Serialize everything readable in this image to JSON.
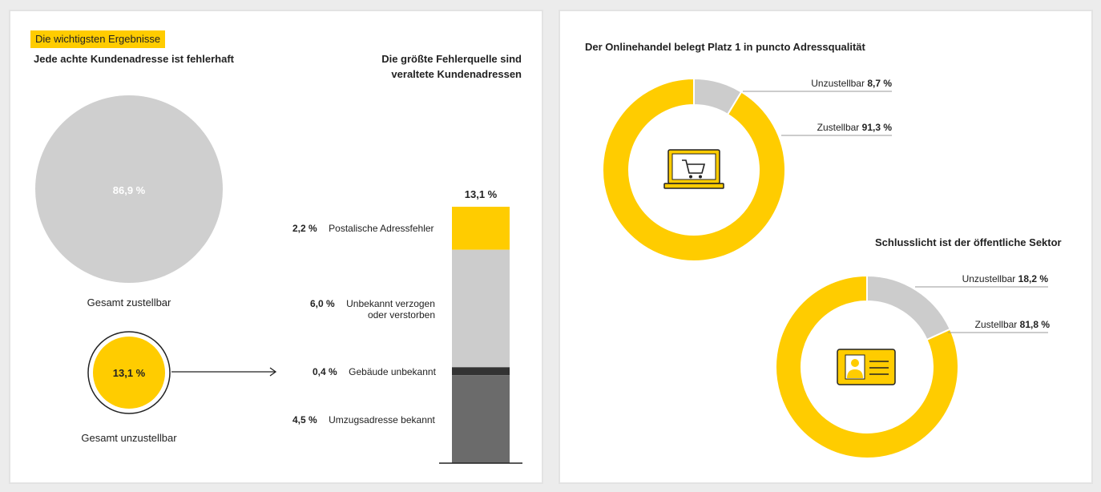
{
  "colors": {
    "yellow": "#ffcc00",
    "light_gray": "#cccccc",
    "dark_gray": "#6b6b6b",
    "darker_gray": "#333333",
    "pie_gray": "#cfcfcf"
  },
  "left": {
    "tag": "Die wichtigsten Ergebnisse",
    "heading": "Jede achte Kundenadresse ist fehlerhaft",
    "big_circle_pct": "86,9 %",
    "big_circle_label": "Gesamt zustellbar",
    "small_circle_pct": "13,1 %",
    "small_circle_label": "Gesamt unzustellbar",
    "stack_heading_1": "Die größte Fehlerquelle sind",
    "stack_heading_2": "veraltete Kundenadressen",
    "stack_total": "13,1 %"
  },
  "right": {
    "heading_top": "Der Onlinehandel belegt Platz 1 in puncto Adressqualität",
    "heading_bottom": "Schlusslicht ist der öffentliche Sektor",
    "icon_top": "shopping-cart-laptop-icon",
    "icon_bottom": "id-card-icon"
  },
  "chart_data": [
    {
      "type": "pie",
      "title": "Jede achte Kundenadresse ist fehlerhaft",
      "slices": [
        {
          "label": "Gesamt zustellbar",
          "value": 86.9,
          "value_label": "86,9 %"
        },
        {
          "label": "Gesamt unzustellbar",
          "value": 13.1,
          "value_label": "13,1 %"
        }
      ]
    },
    {
      "type": "bar",
      "stacked": true,
      "title": "Die größte Fehlerquelle sind veraltete Kundenadressen",
      "total_label": "13,1 %",
      "total": 13.1,
      "segments": [
        {
          "name": "Postalische Adressfehler",
          "value": 2.2,
          "value_label": "2,2 %",
          "color": "#ffcc00"
        },
        {
          "name_lines": [
            "Unbekannt verzogen",
            "oder verstorben"
          ],
          "value": 6.0,
          "value_label": "6,0 %",
          "color": "#cccccc"
        },
        {
          "name": "Gebäude unbekannt",
          "value": 0.4,
          "value_label": "0,4 %",
          "color": "#333333"
        },
        {
          "name": "Umzugsadresse bekannt",
          "value": 4.5,
          "value_label": "4,5 %",
          "color": "#6b6b6b"
        }
      ]
    },
    {
      "type": "pie",
      "donut": true,
      "title": "Der Onlinehandel belegt Platz 1 in puncto Adressqualität",
      "slices": [
        {
          "label": "Unzustellbar",
          "value": 8.7,
          "value_label": "8,7 %",
          "color": "#cccccc"
        },
        {
          "label": "Zustellbar",
          "value": 91.3,
          "value_label": "91,3 %",
          "color": "#ffcc00"
        }
      ]
    },
    {
      "type": "pie",
      "donut": true,
      "title": "Schlusslicht ist der öffentliche Sektor",
      "slices": [
        {
          "label": "Unzustellbar",
          "value": 18.2,
          "value_label": "18,2 %",
          "color": "#cccccc"
        },
        {
          "label": "Zustellbar",
          "value": 81.8,
          "value_label": "81,8 %",
          "color": "#ffcc00"
        }
      ]
    }
  ]
}
